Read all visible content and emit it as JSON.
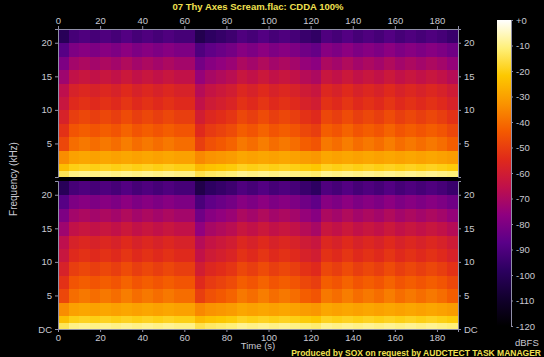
{
  "chart_data": {
    "type": "spectrogram",
    "title": "07 Thy Axes Scream.flac: CDDA 100%",
    "footer": "Produced by SOX on request by AUDCTECT TASK MANAGER",
    "x_label": "Time (s)",
    "y_label": "Frequency (kHz)",
    "xlim": [
      0,
      190
    ],
    "xticks": [
      0,
      20,
      40,
      60,
      80,
      100,
      120,
      140,
      160,
      180
    ],
    "ylim": [
      0,
      22.05
    ],
    "time_bins": [
      0,
      5,
      10,
      15,
      20,
      25,
      30,
      35,
      40,
      45,
      50,
      55,
      60,
      65,
      70,
      75,
      80,
      85,
      90,
      95,
      100,
      105,
      110,
      115,
      120,
      125,
      130,
      135,
      140,
      145,
      150,
      155,
      160,
      165,
      170,
      175,
      180,
      185,
      190
    ],
    "freq_bins": [
      0,
      1,
      2,
      4,
      6,
      8,
      10,
      12,
      14,
      16,
      18,
      20,
      22.05
    ],
    "channels": [
      {
        "yticks": [
          5,
          10,
          15,
          20
        ],
        "z": [
          [
            -14,
            -10,
            -9,
            -10,
            -9,
            -10,
            -9,
            -10,
            -9,
            -10,
            -9,
            -10,
            -10,
            -15,
            -13,
            -12,
            -11,
            -9,
            -10,
            -9,
            -10,
            -9,
            -10,
            -11,
            -12,
            -9,
            -10,
            -9,
            -10,
            -9,
            -10,
            -9,
            -10,
            -9,
            -10,
            -9,
            -10,
            -11
          ],
          [
            -24,
            -20,
            -19,
            -20,
            -19,
            -20,
            -19,
            -20,
            -19,
            -20,
            -19,
            -20,
            -20,
            -25,
            -23,
            -22,
            -21,
            -19,
            -20,
            -19,
            -20,
            -19,
            -20,
            -21,
            -22,
            -19,
            -20,
            -19,
            -20,
            -19,
            -20,
            -19,
            -20,
            -19,
            -20,
            -19,
            -20,
            -21
          ],
          [
            -34,
            -30,
            -29,
            -30,
            -29,
            -30,
            -29,
            -30,
            -29,
            -30,
            -29,
            -30,
            -30,
            -35,
            -33,
            -32,
            -31,
            -29,
            -30,
            -29,
            -30,
            -29,
            -30,
            -31,
            -32,
            -29,
            -30,
            -29,
            -30,
            -29,
            -30,
            -29,
            -30,
            -29,
            -30,
            -29,
            -30,
            -31
          ],
          [
            -48,
            -40,
            -38,
            -40,
            -38,
            -40,
            -37,
            -40,
            -38,
            -40,
            -38,
            -40,
            -40,
            -50,
            -46,
            -44,
            -42,
            -38,
            -40,
            -37,
            -40,
            -38,
            -40,
            -43,
            -45,
            -38,
            -40,
            -37,
            -40,
            -38,
            -40,
            -37,
            -40,
            -38,
            -40,
            -38,
            -40,
            -43
          ],
          [
            -53,
            -45,
            -43,
            -45,
            -43,
            -45,
            -42,
            -45,
            -43,
            -45,
            -43,
            -45,
            -45,
            -55,
            -51,
            -49,
            -47,
            -43,
            -45,
            -42,
            -45,
            -43,
            -45,
            -48,
            -50,
            -43,
            -45,
            -42,
            -45,
            -43,
            -45,
            -42,
            -45,
            -43,
            -45,
            -43,
            -45,
            -48
          ],
          [
            -58,
            -50,
            -48,
            -50,
            -48,
            -50,
            -47,
            -50,
            -48,
            -50,
            -48,
            -50,
            -50,
            -60,
            -56,
            -54,
            -52,
            -48,
            -50,
            -47,
            -50,
            -48,
            -50,
            -53,
            -55,
            -48,
            -50,
            -47,
            -50,
            -48,
            -50,
            -47,
            -50,
            -48,
            -50,
            -48,
            -50,
            -53
          ],
          [
            -63,
            -55,
            -53,
            -55,
            -53,
            -55,
            -52,
            -55,
            -53,
            -55,
            -53,
            -55,
            -55,
            -65,
            -61,
            -59,
            -57,
            -53,
            -55,
            -52,
            -55,
            -53,
            -55,
            -58,
            -60,
            -53,
            -55,
            -52,
            -55,
            -53,
            -55,
            -52,
            -55,
            -53,
            -55,
            -53,
            -55,
            -58
          ],
          [
            -66,
            -58,
            -56,
            -58,
            -56,
            -58,
            -55,
            -58,
            -56,
            -58,
            -56,
            -58,
            -58,
            -68,
            -64,
            -62,
            -60,
            -56,
            -58,
            -55,
            -58,
            -56,
            -58,
            -61,
            -63,
            -56,
            -58,
            -55,
            -58,
            -56,
            -58,
            -55,
            -58,
            -56,
            -58,
            -56,
            -58,
            -61
          ],
          [
            -73,
            -65,
            -63,
            -65,
            -63,
            -65,
            -62,
            -65,
            -63,
            -65,
            -63,
            -65,
            -65,
            -75,
            -71,
            -69,
            -67,
            -63,
            -65,
            -62,
            -65,
            -63,
            -65,
            -68,
            -70,
            -63,
            -65,
            -62,
            -65,
            -63,
            -65,
            -62,
            -65,
            -63,
            -65,
            -63,
            -65,
            -68
          ],
          [
            -80,
            -72,
            -70,
            -72,
            -70,
            -72,
            -69,
            -72,
            -70,
            -72,
            -70,
            -72,
            -72,
            -82,
            -78,
            -76,
            -74,
            -70,
            -72,
            -69,
            -72,
            -70,
            -72,
            -75,
            -77,
            -70,
            -72,
            -69,
            -72,
            -70,
            -72,
            -69,
            -72,
            -70,
            -72,
            -70,
            -72,
            -75
          ],
          [
            -88,
            -80,
            -78,
            -80,
            -78,
            -80,
            -77,
            -80,
            -78,
            -80,
            -78,
            -80,
            -80,
            -90,
            -86,
            -84,
            -82,
            -78,
            -80,
            -77,
            -80,
            -78,
            -80,
            -83,
            -85,
            -78,
            -80,
            -77,
            -80,
            -78,
            -80,
            -77,
            -80,
            -78,
            -80,
            -78,
            -80,
            -83
          ],
          [
            -100,
            -92,
            -90,
            -92,
            -90,
            -92,
            -89,
            -92,
            -90,
            -92,
            -90,
            -92,
            -92,
            -102,
            -98,
            -96,
            -94,
            -90,
            -92,
            -89,
            -92,
            -90,
            -92,
            -95,
            -97,
            -90,
            -92,
            -89,
            -92,
            -90,
            -92,
            -89,
            -92,
            -90,
            -92,
            -90,
            -92,
            -95
          ]
        ]
      },
      {
        "yticks": [
          {
            "value": 0,
            "label": "DC"
          },
          5,
          10,
          15,
          20
        ],
        "z": [
          [
            -14,
            -10,
            -9,
            -10,
            -9,
            -10,
            -9,
            -10,
            -9,
            -10,
            -9,
            -10,
            -10,
            -15,
            -13,
            -12,
            -11,
            -9,
            -10,
            -9,
            -10,
            -9,
            -10,
            -11,
            -12,
            -9,
            -10,
            -9,
            -10,
            -9,
            -10,
            -9,
            -10,
            -9,
            -10,
            -9,
            -10,
            -11
          ],
          [
            -24,
            -20,
            -19,
            -20,
            -19,
            -20,
            -19,
            -20,
            -19,
            -20,
            -19,
            -20,
            -20,
            -25,
            -23,
            -22,
            -21,
            -19,
            -20,
            -19,
            -20,
            -19,
            -20,
            -21,
            -22,
            -19,
            -20,
            -19,
            -20,
            -19,
            -20,
            -19,
            -20,
            -19,
            -20,
            -19,
            -20,
            -21
          ],
          [
            -34,
            -30,
            -29,
            -30,
            -29,
            -30,
            -29,
            -30,
            -29,
            -30,
            -29,
            -30,
            -30,
            -35,
            -33,
            -32,
            -31,
            -29,
            -30,
            -29,
            -30,
            -29,
            -30,
            -31,
            -32,
            -29,
            -30,
            -29,
            -30,
            -29,
            -30,
            -29,
            -30,
            -29,
            -30,
            -29,
            -30,
            -31
          ],
          [
            -48,
            -40,
            -38,
            -40,
            -38,
            -40,
            -37,
            -40,
            -38,
            -40,
            -38,
            -40,
            -40,
            -50,
            -46,
            -44,
            -42,
            -38,
            -40,
            -37,
            -40,
            -38,
            -40,
            -43,
            -45,
            -38,
            -40,
            -37,
            -40,
            -38,
            -40,
            -37,
            -40,
            -38,
            -40,
            -38,
            -40,
            -43
          ],
          [
            -53,
            -45,
            -43,
            -45,
            -43,
            -45,
            -42,
            -45,
            -43,
            -45,
            -43,
            -45,
            -45,
            -55,
            -51,
            -49,
            -47,
            -43,
            -45,
            -42,
            -45,
            -43,
            -45,
            -48,
            -50,
            -43,
            -45,
            -42,
            -45,
            -43,
            -45,
            -42,
            -45,
            -43,
            -45,
            -43,
            -45,
            -48
          ],
          [
            -58,
            -50,
            -48,
            -50,
            -48,
            -50,
            -47,
            -50,
            -48,
            -50,
            -48,
            -50,
            -50,
            -60,
            -56,
            -54,
            -52,
            -48,
            -50,
            -47,
            -50,
            -48,
            -50,
            -53,
            -55,
            -48,
            -50,
            -47,
            -50,
            -48,
            -50,
            -47,
            -50,
            -48,
            -50,
            -48,
            -50,
            -53
          ],
          [
            -63,
            -55,
            -53,
            -55,
            -53,
            -55,
            -52,
            -55,
            -53,
            -55,
            -53,
            -55,
            -55,
            -65,
            -61,
            -59,
            -57,
            -53,
            -55,
            -52,
            -55,
            -53,
            -55,
            -58,
            -60,
            -53,
            -55,
            -52,
            -55,
            -53,
            -55,
            -52,
            -55,
            -53,
            -55,
            -53,
            -55,
            -58
          ],
          [
            -66,
            -58,
            -56,
            -58,
            -56,
            -58,
            -55,
            -58,
            -56,
            -58,
            -56,
            -58,
            -58,
            -68,
            -64,
            -62,
            -60,
            -56,
            -58,
            -55,
            -58,
            -56,
            -58,
            -61,
            -63,
            -56,
            -58,
            -55,
            -58,
            -56,
            -58,
            -55,
            -58,
            -56,
            -58,
            -56,
            -58,
            -61
          ],
          [
            -73,
            -65,
            -63,
            -65,
            -63,
            -65,
            -62,
            -65,
            -63,
            -65,
            -63,
            -65,
            -65,
            -76,
            -71,
            -69,
            -67,
            -63,
            -65,
            -62,
            -65,
            -63,
            -65,
            -68,
            -71,
            -63,
            -65,
            -62,
            -65,
            -63,
            -65,
            -62,
            -65,
            -63,
            -65,
            -63,
            -65,
            -68
          ],
          [
            -80,
            -72,
            -70,
            -72,
            -70,
            -72,
            -69,
            -72,
            -70,
            -72,
            -70,
            -72,
            -72,
            -83,
            -78,
            -76,
            -74,
            -70,
            -72,
            -69,
            -72,
            -70,
            -72,
            -75,
            -78,
            -70,
            -72,
            -69,
            -72,
            -70,
            -72,
            -69,
            -72,
            -70,
            -72,
            -70,
            -72,
            -75
          ],
          [
            -88,
            -80,
            -78,
            -80,
            -78,
            -80,
            -77,
            -80,
            -78,
            -80,
            -78,
            -80,
            -80,
            -91,
            -86,
            -84,
            -82,
            -78,
            -80,
            -77,
            -80,
            -78,
            -80,
            -83,
            -86,
            -78,
            -80,
            -77,
            -80,
            -78,
            -80,
            -77,
            -80,
            -78,
            -80,
            -78,
            -80,
            -83
          ],
          [
            -100,
            -92,
            -90,
            -92,
            -90,
            -92,
            -89,
            -92,
            -90,
            -92,
            -90,
            -92,
            -92,
            -103,
            -98,
            -96,
            -94,
            -90,
            -92,
            -89,
            -92,
            -90,
            -92,
            -95,
            -98,
            -90,
            -92,
            -89,
            -92,
            -90,
            -92,
            -89,
            -92,
            -90,
            -92,
            -90,
            -92,
            -95
          ]
        ]
      }
    ],
    "colorbar": {
      "lim": [
        -120,
        0
      ],
      "ticks": [
        {
          "value": 0,
          "label": "+0"
        },
        -10,
        -20,
        -30,
        -40,
        -50,
        -60,
        -70,
        -80,
        -90,
        -100,
        -110,
        -120
      ],
      "label": "dBFS"
    }
  }
}
